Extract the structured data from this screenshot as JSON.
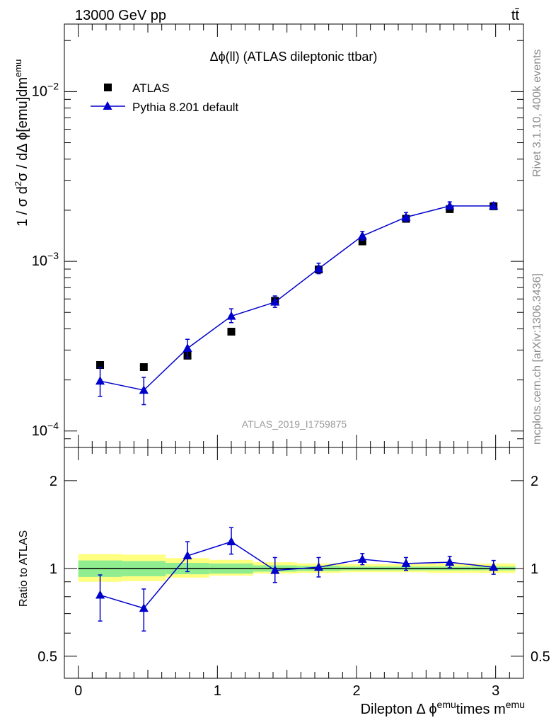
{
  "header": {
    "energy_label": "13000 GeV pp",
    "process_label": "tt̄"
  },
  "side": {
    "rivet_label": "Rivet 3.1.10,  400k events",
    "source_label": "mcplots.cern.ch [arXiv:1306.3436]"
  },
  "plot": {
    "title": "Δϕ(ll) (ATLAS dileptonic ttbar)",
    "analysis_id": "ATLAS_2019_I1759875",
    "ylabel_main": "1 / σ  d²σ / dΔ ϕ[emu]dm^emu",
    "ylabel_ratio": "Ratio to ATLAS",
    "xlabel": "Dilepton Δ ϕ^emu times m^emu"
  },
  "legend": {
    "data_label": "ATLAS",
    "mc_label": "Pythia 8.201 default"
  },
  "colors": {
    "data": "#000000",
    "mc": "#0000cc",
    "band_inner": "#90ee90",
    "band_outer": "#ffff80"
  },
  "chart_data": [
    {
      "type": "scatter",
      "panel": "main",
      "yscale": "log",
      "xlim": [
        -0.1,
        3.2
      ],
      "ylim": [
        8e-05,
        0.025
      ],
      "x_ticks": [
        "0",
        "1",
        "2",
        "3"
      ],
      "y_ticks": [
        "10^-4",
        "10^-3",
        "10^-2"
      ],
      "x": [
        0.157,
        0.471,
        0.785,
        1.1,
        1.414,
        1.728,
        2.042,
        2.356,
        2.67,
        2.985
      ],
      "series": [
        {
          "name": "ATLAS",
          "marker": "square",
          "values": [
            0.000245,
            0.000238,
            0.000278,
            0.000385,
            0.000585,
            0.000895,
            0.00131,
            0.00178,
            0.00203,
            0.00211
          ]
        },
        {
          "name": "Pythia 8.201 default",
          "marker": "triangle",
          "line": true,
          "values": [
            0.000197,
            0.000174,
            0.000307,
            0.000475,
            0.000575,
            0.000905,
            0.00141,
            0.00182,
            0.00212,
            0.00212
          ],
          "err_low": [
            0.00016,
            0.000143,
            0.00027,
            0.000435,
            0.000535,
            0.000845,
            0.00133,
            0.00172,
            0.00203,
            0.00204
          ],
          "err_high": [
            0.000236,
            0.000207,
            0.000347,
            0.000525,
            0.000625,
            0.000975,
            0.0015,
            0.00194,
            0.00224,
            0.00222
          ]
        }
      ]
    },
    {
      "type": "scatter",
      "panel": "ratio",
      "yscale": "log",
      "xlim": [
        -0.1,
        3.2
      ],
      "ylim": [
        0.42,
        2.6
      ],
      "y_ticks": [
        "0.5",
        "1",
        "2"
      ],
      "x": [
        0.157,
        0.471,
        0.785,
        1.1,
        1.414,
        1.728,
        2.042,
        2.356,
        2.67,
        2.985
      ],
      "series": [
        {
          "name": "Pythia 8.201 default",
          "marker": "triangle",
          "line": true,
          "values": [
            0.81,
            0.73,
            1.105,
            1.235,
            0.985,
            1.01,
            1.075,
            1.04,
            1.05,
            1.01
          ],
          "err_low": [
            0.66,
            0.61,
            0.975,
            1.12,
            0.895,
            0.935,
            1.03,
            0.985,
            1.005,
            0.955
          ],
          "err_high": [
            0.95,
            0.85,
            1.235,
            1.38,
            1.09,
            1.09,
            1.125,
            1.09,
            1.1,
            1.065
          ]
        }
      ],
      "bands": {
        "inner_low": [
          0.935,
          0.94,
          0.955,
          0.96,
          0.975,
          0.98,
          0.985,
          0.985,
          0.985,
          0.985
        ],
        "inner_high": [
          1.065,
          1.06,
          1.045,
          1.04,
          1.025,
          1.02,
          1.015,
          1.015,
          1.015,
          1.015
        ],
        "outer_low": [
          0.9,
          0.905,
          0.93,
          0.945,
          0.96,
          0.965,
          0.97,
          0.97,
          0.965,
          0.965
        ],
        "outer_high": [
          1.12,
          1.115,
          1.085,
          1.07,
          1.05,
          1.04,
          1.035,
          1.035,
          1.04,
          1.04
        ]
      }
    }
  ]
}
